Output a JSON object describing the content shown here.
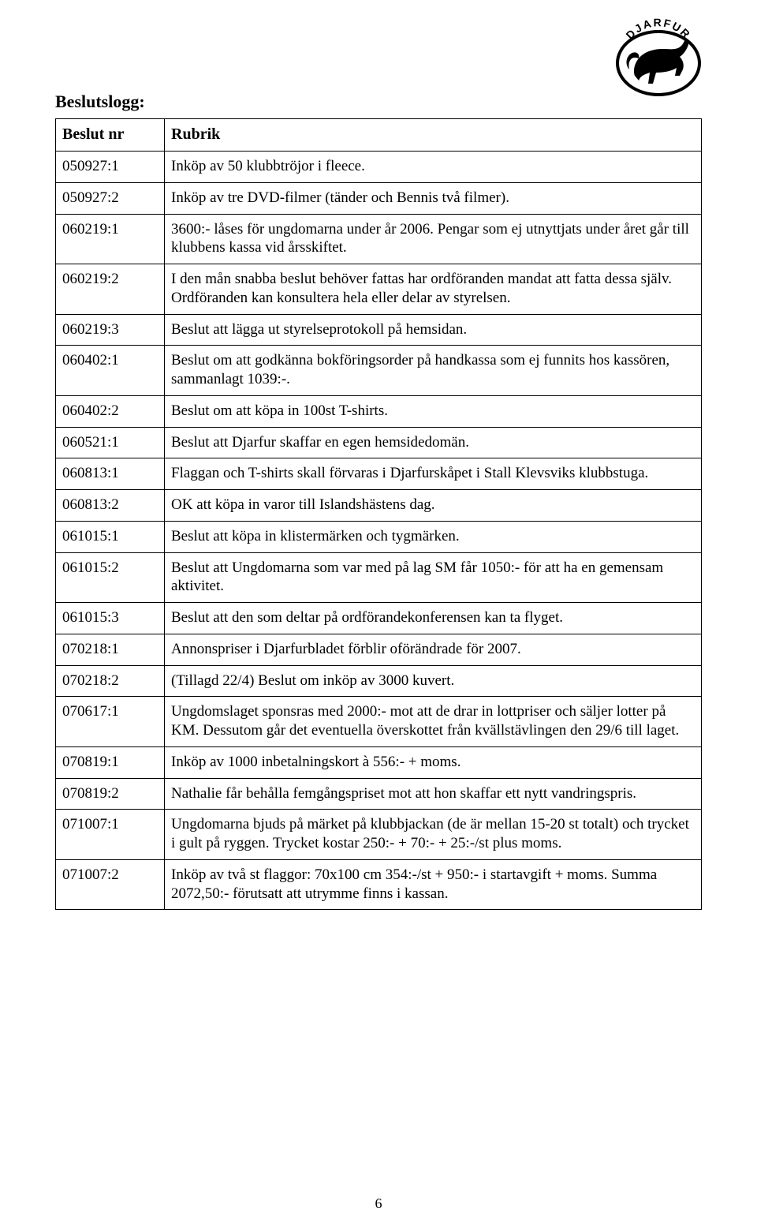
{
  "logo": {
    "arc_text": "DJARFUR"
  },
  "heading": "Beslutslogg:",
  "table": {
    "headers": [
      "Beslut nr",
      "Rubrik"
    ],
    "rows": [
      [
        "050927:1",
        "Inköp av 50 klubbtröjor i fleece."
      ],
      [
        "050927:2",
        "Inköp av tre DVD-filmer (tänder och Bennis två filmer)."
      ],
      [
        "060219:1",
        "3600:- låses för ungdomarna under år 2006. Pengar som ej utnyttjats under året går till klubbens kassa vid årsskiftet."
      ],
      [
        "060219:2",
        "I den mån snabba beslut behöver fattas har ordföranden mandat att fatta dessa själv. Ordföranden kan konsultera hela eller delar av styrelsen."
      ],
      [
        "060219:3",
        "Beslut att lägga ut styrelseprotokoll på hemsidan."
      ],
      [
        "060402:1",
        "Beslut om att godkänna bokföringsorder på handkassa som ej funnits hos kassören, sammanlagt 1039:-."
      ],
      [
        "060402:2",
        "Beslut om att köpa in 100st T-shirts."
      ],
      [
        "060521:1",
        "Beslut att Djarfur skaffar en egen hemsidedomän."
      ],
      [
        "060813:1",
        "Flaggan och T-shirts skall förvaras i Djarfurskåpet i Stall Klevsviks klubbstuga."
      ],
      [
        "060813:2",
        "OK att köpa in varor till Islandshästens dag."
      ],
      [
        "061015:1",
        "Beslut att köpa in klistermärken och tygmärken."
      ],
      [
        "061015:2",
        "Beslut att Ungdomarna som var med på lag SM får 1050:- för att ha en gemensam aktivitet."
      ],
      [
        "061015:3",
        "Beslut att den som deltar på ordförandekonferensen kan ta flyget."
      ],
      [
        "070218:1",
        "Annonspriser i Djarfurbladet förblir oförändrade för 2007."
      ],
      [
        "070218:2",
        "(Tillagd 22/4) Beslut om inköp av 3000 kuvert."
      ],
      [
        "070617:1",
        "Ungdomslaget sponsras med 2000:- mot att de drar in lottpriser och säljer lotter på KM. Dessutom går det eventuella överskottet från kvällstävlingen den 29/6 till laget."
      ],
      [
        "070819:1",
        "Inköp av 1000 inbetalningskort à 556:- + moms."
      ],
      [
        "070819:2",
        "Nathalie får behålla femgångspriset mot att hon skaffar ett nytt vandringspris."
      ],
      [
        "071007:1",
        "Ungdomarna bjuds på märket på klubbjackan (de är mellan 15-20 st totalt) och trycket i gult på ryggen. Trycket kostar 250:- + 70:- + 25:-/st plus moms."
      ],
      [
        "071007:2",
        "Inköp av två st flaggor: 70x100 cm 354:-/st + 950:- i startavgift + moms. Summa 2072,50:- förutsatt att utrymme finns i kassan."
      ]
    ]
  },
  "page_number": "6"
}
